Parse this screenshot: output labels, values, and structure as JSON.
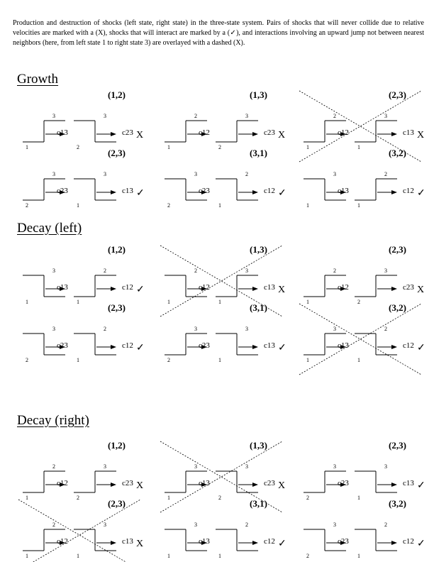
{
  "caption": "Production and destruction of shocks (left state, right state) in the three-state system. Pairs of shocks that will never collide due to relative velocities are marked with a (X), shocks that will interact are marked by a (✓), and interactions involving an upward jump not between nearest neighbors (here, from left state 1 to right state 3) are overlayed with a dashed (X).",
  "sections": [
    {
      "title": "Growth",
      "panels": [
        {
          "pair": "(1,2)",
          "shocks": [
            "c13",
            "c23"
          ],
          "mark": "X",
          "crossed": false,
          "left": {
            "top": "3",
            "bottom": "1",
            "dir": "up"
          },
          "right": {
            "top": "3",
            "bottom": "2",
            "dir": "down"
          }
        },
        {
          "pair": "(1,3)",
          "shocks": [
            "c12",
            "c23"
          ],
          "mark": "X",
          "crossed": false,
          "left": {
            "top": "2",
            "bottom": "1",
            "dir": "up",
            "mid": ""
          },
          "right": {
            "top": "3",
            "bottom": "2",
            "dir": "up"
          }
        },
        {
          "pair": "(2,3)",
          "shocks": [
            "c12",
            "c13"
          ],
          "mark": "X",
          "crossed": true,
          "left": {
            "top": "2",
            "bottom": "1",
            "dir": "up"
          },
          "right": {
            "top": "3",
            "bottom": "1",
            "dir": "up"
          }
        },
        {
          "pair": "(2,3)",
          "shocks": [
            "c23",
            "c13"
          ],
          "mark": "✓",
          "crossed": false,
          "left": {
            "top": "3",
            "bottom": "2",
            "dir": "up"
          },
          "right": {
            "top": "3",
            "bottom": "1",
            "dir": "down"
          }
        },
        {
          "pair": "(3,1)",
          "shocks": [
            "c23",
            "c12"
          ],
          "mark": "✓",
          "crossed": false,
          "left": {
            "top": "3",
            "bottom": "2",
            "dir": "down"
          },
          "right": {
            "top": "2",
            "bottom": "1",
            "dir": "down"
          }
        },
        {
          "pair": "(3,2)",
          "shocks": [
            "c13",
            "c12"
          ],
          "mark": "✓",
          "crossed": false,
          "left": {
            "top": "3",
            "bottom": "1",
            "dir": "down"
          },
          "right": {
            "top": "2",
            "bottom": "1",
            "dir": "up"
          }
        }
      ]
    },
    {
      "title": "Decay (left)",
      "panels": [
        {
          "pair": "(1,2)",
          "shocks": [
            "c13",
            "c12"
          ],
          "mark": "✓",
          "crossed": false,
          "left": {
            "top": "3",
            "bottom": "1",
            "dir": "down"
          },
          "right": {
            "top": "2",
            "bottom": "1",
            "dir": "up"
          }
        },
        {
          "pair": "(1,3)",
          "shocks": [
            "c12",
            "c13"
          ],
          "mark": "X",
          "crossed": true,
          "left": {
            "top": "2",
            "bottom": "1",
            "dir": "down"
          },
          "right": {
            "top": "3",
            "bottom": "1",
            "dir": "up"
          }
        },
        {
          "pair": "(2,3)",
          "shocks": [
            "c12",
            "c23"
          ],
          "mark": "X",
          "crossed": false,
          "left": {
            "top": "2",
            "bottom": "1",
            "dir": "up"
          },
          "right": {
            "top": "3",
            "bottom": "2",
            "dir": "up"
          }
        },
        {
          "pair": "(2,3)",
          "shocks": [
            "c23",
            "c12"
          ],
          "mark": "✓",
          "crossed": false,
          "left": {
            "top": "3",
            "bottom": "2",
            "dir": "down"
          },
          "right": {
            "top": "2",
            "bottom": "1",
            "dir": "down"
          }
        },
        {
          "pair": "(3,1)",
          "shocks": [
            "c23",
            "c13"
          ],
          "mark": "✓",
          "crossed": false,
          "left": {
            "top": "3",
            "bottom": "2",
            "dir": "up"
          },
          "right": {
            "top": "3",
            "bottom": "1",
            "dir": "down"
          }
        },
        {
          "pair": "(3,2)",
          "shocks": [
            "c13",
            "c12"
          ],
          "mark": "✓",
          "crossed": true,
          "left": {
            "top": "3",
            "bottom": "1",
            "dir": "up"
          },
          "right": {
            "top": "2",
            "bottom": "1",
            "dir": "down"
          }
        }
      ]
    },
    {
      "title": "Decay (right)",
      "panels": [
        {
          "pair": "(1,2)",
          "shocks": [
            "c12",
            "c23"
          ],
          "mark": "X",
          "crossed": false,
          "left": {
            "top": "2",
            "bottom": "1",
            "dir": "up"
          },
          "right": {
            "top": "3",
            "bottom": "2",
            "dir": "up"
          }
        },
        {
          "pair": "(1,3)",
          "shocks": [
            "c13",
            "c23"
          ],
          "mark": "X",
          "crossed": true,
          "left": {
            "top": "3",
            "bottom": "1",
            "dir": "up"
          },
          "right": {
            "top": "3",
            "bottom": "2",
            "dir": "down"
          }
        },
        {
          "pair": "(2,3)",
          "shocks": [
            "c23",
            "c13"
          ],
          "mark": "✓",
          "crossed": false,
          "left": {
            "top": "3",
            "bottom": "2",
            "dir": "up"
          },
          "right": {
            "top": "3",
            "bottom": "1",
            "dir": "down"
          }
        },
        {
          "pair": "(2,3)",
          "shocks": [
            "c12",
            "c13"
          ],
          "mark": "X",
          "crossed": true,
          "left": {
            "top": "2",
            "bottom": "1",
            "dir": "up"
          },
          "right": {
            "top": "3",
            "bottom": "1",
            "dir": "down"
          }
        },
        {
          "pair": "(3,1)",
          "shocks": [
            "c13",
            "c12"
          ],
          "mark": "✓",
          "crossed": false,
          "left": {
            "top": "3",
            "bottom": "1",
            "dir": "down"
          },
          "right": {
            "top": "2",
            "bottom": "1",
            "dir": "down"
          }
        },
        {
          "pair": "(3,2)",
          "shocks": [
            "c23",
            "c12"
          ],
          "mark": "✓",
          "crossed": false,
          "left": {
            "top": "3",
            "bottom": "2",
            "dir": "down"
          },
          "right": {
            "top": "2",
            "bottom": "1",
            "dir": "down"
          }
        }
      ]
    }
  ]
}
